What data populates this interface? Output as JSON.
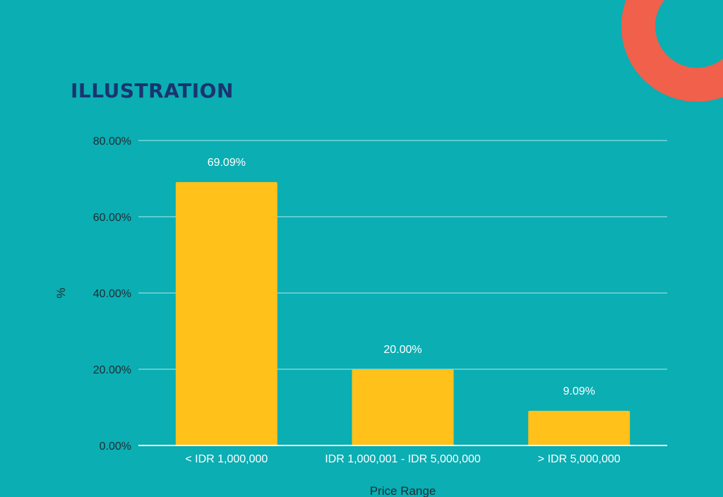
{
  "page": {
    "title": "ILLUSTRATION",
    "background_color": "#0aaeb3",
    "title_color": "#1b3470",
    "accent_color": "#f0604a"
  },
  "chart_data": {
    "type": "bar",
    "title": "",
    "xlabel": "Price Range",
    "ylabel": "%",
    "categories": [
      "< IDR 1,000,000",
      "IDR 1,000,001 - IDR 5,000,000",
      "> IDR 5,000,000"
    ],
    "values": [
      69.09,
      20.0,
      9.09
    ],
    "data_labels": [
      "69.09%",
      "20.00%",
      "9.09%"
    ],
    "ylim": [
      0,
      80
    ],
    "y_ticks": [
      0,
      20,
      40,
      60,
      80
    ],
    "y_tick_labels": [
      "0.00%",
      "20.00%",
      "40.00%",
      "60.00%",
      "80.00%"
    ],
    "grid": true,
    "legend": "none",
    "bar_color": "#ffc11a",
    "grid_color": "#8fdde0",
    "axis_color": "#ffffff",
    "label_color": "#ffffff",
    "tick_label_color": "#1f2d33"
  }
}
